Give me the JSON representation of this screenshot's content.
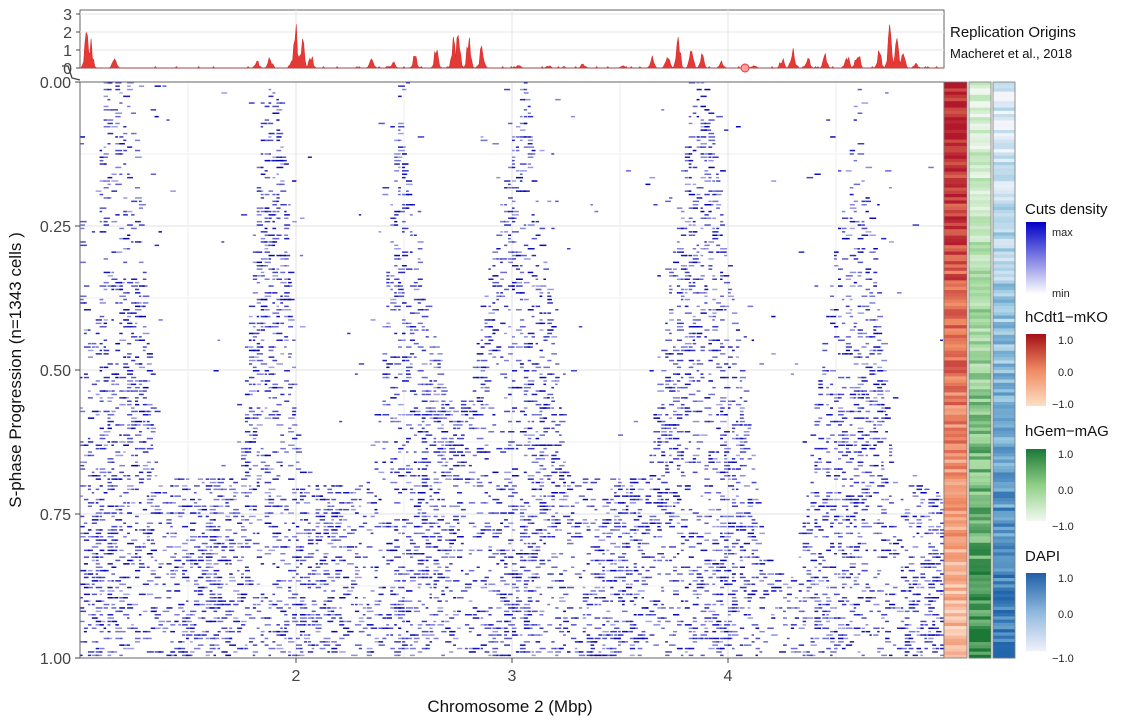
{
  "chart_data": [
    {
      "type": "area",
      "panel": "replication-origins-track",
      "title": "Replication Origins",
      "subtitle": "Macheret et al., 2018",
      "ylim": [
        0,
        3
      ],
      "y_ticks": [
        "3",
        "2",
        "1",
        "0"
      ],
      "xlim": [
        1.0,
        5.0
      ],
      "color": "#e53935",
      "peaks": [
        {
          "x": 1.03,
          "y": 2.4
        },
        {
          "x": 1.05,
          "y": 1.8
        },
        {
          "x": 1.16,
          "y": 0.8
        },
        {
          "x": 1.82,
          "y": 0.5
        },
        {
          "x": 1.88,
          "y": 0.8
        },
        {
          "x": 1.98,
          "y": 0.4
        },
        {
          "x": 2.0,
          "y": 3.0
        },
        {
          "x": 2.03,
          "y": 2.2
        },
        {
          "x": 2.07,
          "y": 1.0
        },
        {
          "x": 2.35,
          "y": 0.6
        },
        {
          "x": 2.45,
          "y": 0.5
        },
        {
          "x": 2.55,
          "y": 0.9
        },
        {
          "x": 2.65,
          "y": 1.4
        },
        {
          "x": 2.73,
          "y": 1.8
        },
        {
          "x": 2.75,
          "y": 2.4
        },
        {
          "x": 2.8,
          "y": 2.1
        },
        {
          "x": 2.86,
          "y": 1.4
        },
        {
          "x": 3.03,
          "y": 0.3
        },
        {
          "x": 3.17,
          "y": 0.2
        },
        {
          "x": 3.33,
          "y": 0.3
        },
        {
          "x": 3.51,
          "y": 0.2
        },
        {
          "x": 3.65,
          "y": 0.7
        },
        {
          "x": 3.72,
          "y": 1.2
        },
        {
          "x": 3.77,
          "y": 2.2
        },
        {
          "x": 3.83,
          "y": 1.3
        },
        {
          "x": 3.88,
          "y": 0.9
        },
        {
          "x": 3.97,
          "y": 0.5
        },
        {
          "x": 4.12,
          "y": 0.2
        },
        {
          "x": 4.25,
          "y": 0.7
        },
        {
          "x": 4.3,
          "y": 1.8
        },
        {
          "x": 4.37,
          "y": 0.8
        },
        {
          "x": 4.45,
          "y": 0.9
        },
        {
          "x": 4.55,
          "y": 1.2
        },
        {
          "x": 4.6,
          "y": 1.5
        },
        {
          "x": 4.7,
          "y": 1.2
        },
        {
          "x": 4.75,
          "y": 2.5
        },
        {
          "x": 4.78,
          "y": 2.2
        },
        {
          "x": 4.81,
          "y": 1.3
        },
        {
          "x": 4.87,
          "y": 0.3
        }
      ]
    },
    {
      "type": "heatmap",
      "panel": "single-cell-cuts-heatmap",
      "xlabel": "Chromosome 2 (Mbp)",
      "ylabel": "S-phase Progression (n=1343 cells )",
      "xlim": [
        1.0,
        5.0
      ],
      "ylim": [
        0.0,
        1.0
      ],
      "x_ticks": [
        "2",
        "3",
        "4"
      ],
      "y_ticks": [
        "0.00",
        "0.25",
        "0.50",
        "0.75",
        "1.00"
      ],
      "grid": true,
      "color_low": "#ffffff",
      "color_high": "#0000b4",
      "replication_valleys": [
        {
          "center": 1.05,
          "half_width_top": 0.06,
          "half_width_bottom": 0.03,
          "depth": 0.35
        },
        {
          "center": 1.55,
          "half_width_top": 0.3,
          "half_width_bottom": 0.15,
          "depth": 0.98
        },
        {
          "center": 2.2,
          "half_width_top": 0.28,
          "half_width_bottom": 0.12,
          "depth": 1.0
        },
        {
          "center": 2.75,
          "half_width_top": 0.3,
          "half_width_bottom": 0.05,
          "depth": 0.55
        },
        {
          "center": 3.45,
          "half_width_top": 0.38,
          "half_width_bottom": 0.1,
          "depth": 0.98
        },
        {
          "center": 4.25,
          "half_width_top": 0.35,
          "half_width_bottom": 0.06,
          "depth": 0.85
        },
        {
          "center": 4.9,
          "half_width_top": 0.28,
          "half_width_bottom": 0.06,
          "depth": 1.0
        }
      ]
    },
    {
      "type": "heatmap",
      "panel": "cell-annotation-bars",
      "tracks": [
        {
          "name": "hCdt1-mKO",
          "trend": "high-to-low",
          "color_high": "#b2182b",
          "color_mid": "#ef8a62",
          "color_low": "#fddbc7"
        },
        {
          "name": "hGem-mAG",
          "trend": "low-to-high",
          "color_high": "#1b7837",
          "color_mid": "#a6dba0",
          "color_low": "#f0f7ef"
        },
        {
          "name": "DAPI",
          "trend": "low-to-high",
          "color_high": "#2166ac",
          "color_mid": "#92c5de",
          "color_low": "#f4f4fb"
        }
      ]
    }
  ],
  "legends": {
    "cuts": {
      "title": "Cuts density",
      "max_label": "max",
      "min_label": "min",
      "color_top": "#0000c8",
      "color_bottom": "#ffffff"
    },
    "cdt1": {
      "title": "hCdt1−mKO",
      "ticks": [
        "1.0",
        "0.0",
        "−1.0"
      ],
      "color_top": "#a50f15",
      "color_mid": "#ef8a62",
      "color_bottom": "#fde0c5"
    },
    "gem": {
      "title": "hGem−mAG",
      "ticks": [
        "1.0",
        "0.0",
        "−1.0"
      ],
      "color_top": "#1b7837",
      "color_mid": "#8fcf86",
      "color_bottom": "#f2f9f0"
    },
    "dapi": {
      "title": "DAPI",
      "ticks": [
        "1.0",
        "0.0",
        "−1.0"
      ],
      "color_top": "#1f5fa6",
      "color_mid": "#8fb8dd",
      "color_bottom": "#f1f1fa"
    }
  }
}
